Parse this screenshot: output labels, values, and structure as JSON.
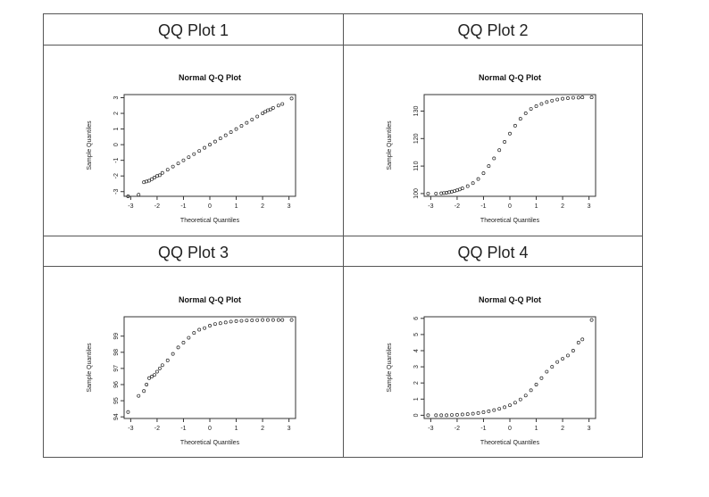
{
  "table": {
    "panels": [
      {
        "header": "QQ Plot 1"
      },
      {
        "header": "QQ Plot 2"
      },
      {
        "header": "QQ Plot 3"
      },
      {
        "header": "QQ Plot 4"
      }
    ]
  },
  "chart_data": [
    {
      "type": "scatter",
      "title": "Normal Q-Q Plot",
      "xlabel": "Theoretical Quantiles",
      "ylabel": "Sample Quantiles",
      "xlim": [
        -3.25,
        3.25
      ],
      "ylim": [
        -3.3,
        3.2
      ],
      "xticks": [
        -3,
        -2,
        -1,
        0,
        1,
        2,
        3
      ],
      "yticks": [
        -3,
        -2,
        -1,
        0,
        1,
        2,
        3
      ],
      "grid": false,
      "points": [
        [
          -3.1,
          -3.3
        ],
        [
          -2.7,
          -3.2
        ],
        [
          -2.5,
          -2.4
        ],
        [
          -2.4,
          -2.35
        ],
        [
          -2.3,
          -2.3
        ],
        [
          -2.2,
          -2.2
        ],
        [
          -2.1,
          -2.1
        ],
        [
          -2.0,
          -2.0
        ],
        [
          -1.9,
          -1.95
        ],
        [
          -1.8,
          -1.8
        ],
        [
          -1.6,
          -1.6
        ],
        [
          -1.4,
          -1.4
        ],
        [
          -1.2,
          -1.2
        ],
        [
          -1.0,
          -1.0
        ],
        [
          -0.8,
          -0.8
        ],
        [
          -0.6,
          -0.6
        ],
        [
          -0.4,
          -0.4
        ],
        [
          -0.2,
          -0.2
        ],
        [
          0.0,
          0.0
        ],
        [
          0.2,
          0.2
        ],
        [
          0.4,
          0.4
        ],
        [
          0.6,
          0.6
        ],
        [
          0.8,
          0.8
        ],
        [
          1.0,
          1.0
        ],
        [
          1.2,
          1.2
        ],
        [
          1.4,
          1.4
        ],
        [
          1.6,
          1.6
        ],
        [
          1.8,
          1.8
        ],
        [
          2.0,
          2.0
        ],
        [
          2.1,
          2.1
        ],
        [
          2.2,
          2.2
        ],
        [
          2.3,
          2.25
        ],
        [
          2.4,
          2.35
        ],
        [
          2.6,
          2.5
        ],
        [
          2.75,
          2.6
        ],
        [
          3.1,
          2.95
        ]
      ]
    },
    {
      "type": "scatter",
      "title": "Normal Q-Q Plot",
      "xlabel": "Theoretical Quantiles",
      "ylabel": "Sample Quantiles",
      "xlim": [
        -3.25,
        3.25
      ],
      "ylim": [
        99,
        136
      ],
      "xticks": [
        -3,
        -2,
        -1,
        0,
        1,
        2,
        3
      ],
      "yticks": [
        100,
        110,
        120,
        130
      ],
      "grid": false,
      "points": [
        [
          -3.1,
          100.0
        ],
        [
          -2.8,
          100.0
        ],
        [
          -2.6,
          100.1
        ],
        [
          -2.5,
          100.2
        ],
        [
          -2.4,
          100.3
        ],
        [
          -2.3,
          100.5
        ],
        [
          -2.2,
          100.7
        ],
        [
          -2.1,
          100.9
        ],
        [
          -2.0,
          101.2
        ],
        [
          -1.9,
          101.5
        ],
        [
          -1.8,
          101.9
        ],
        [
          -1.6,
          102.7
        ],
        [
          -1.4,
          103.8
        ],
        [
          -1.2,
          105.3
        ],
        [
          -1.0,
          107.4
        ],
        [
          -0.8,
          110.0
        ],
        [
          -0.6,
          112.8
        ],
        [
          -0.4,
          115.8
        ],
        [
          -0.2,
          118.8
        ],
        [
          0.0,
          121.8
        ],
        [
          0.2,
          124.7
        ],
        [
          0.4,
          127.2
        ],
        [
          0.6,
          129.2
        ],
        [
          0.8,
          130.8
        ],
        [
          1.0,
          131.8
        ],
        [
          1.2,
          132.6
        ],
        [
          1.4,
          133.3
        ],
        [
          1.6,
          133.8
        ],
        [
          1.8,
          134.2
        ],
        [
          2.0,
          134.5
        ],
        [
          2.2,
          134.7
        ],
        [
          2.4,
          134.85
        ],
        [
          2.6,
          134.9
        ],
        [
          2.75,
          135.0
        ],
        [
          3.1,
          135.0
        ]
      ]
    },
    {
      "type": "scatter",
      "title": "Normal Q-Q Plot",
      "xlabel": "Theoretical Quantiles",
      "ylabel": "Sample Quantiles",
      "xlim": [
        -3.25,
        3.25
      ],
      "ylim": [
        93.9,
        100.2
      ],
      "xticks": [
        -3,
        -2,
        -1,
        0,
        1,
        2,
        3
      ],
      "yticks": [
        94,
        95,
        96,
        97,
        98,
        99
      ],
      "grid": false,
      "points": [
        [
          -3.1,
          94.3
        ],
        [
          -2.7,
          95.3
        ],
        [
          -2.5,
          95.6
        ],
        [
          -2.4,
          96.0
        ],
        [
          -2.3,
          96.4
        ],
        [
          -2.2,
          96.5
        ],
        [
          -2.1,
          96.6
        ],
        [
          -2.0,
          96.8
        ],
        [
          -1.9,
          97.0
        ],
        [
          -1.8,
          97.2
        ],
        [
          -1.6,
          97.5
        ],
        [
          -1.4,
          97.9
        ],
        [
          -1.2,
          98.3
        ],
        [
          -1.0,
          98.6
        ],
        [
          -0.8,
          98.9
        ],
        [
          -0.6,
          99.2
        ],
        [
          -0.4,
          99.4
        ],
        [
          -0.2,
          99.5
        ],
        [
          0.0,
          99.65
        ],
        [
          0.2,
          99.75
        ],
        [
          0.4,
          99.8
        ],
        [
          0.6,
          99.85
        ],
        [
          0.8,
          99.9
        ],
        [
          1.0,
          99.93
        ],
        [
          1.2,
          99.95
        ],
        [
          1.4,
          99.97
        ],
        [
          1.6,
          99.98
        ],
        [
          1.8,
          99.99
        ],
        [
          2.0,
          100.0
        ],
        [
          2.2,
          100.0
        ],
        [
          2.4,
          100.0
        ],
        [
          2.6,
          100.0
        ],
        [
          2.75,
          100.0
        ],
        [
          3.1,
          100.0
        ]
      ]
    },
    {
      "type": "scatter",
      "title": "Normal Q-Q Plot",
      "xlabel": "Theoretical Quantiles",
      "ylabel": "Sample Quantiles",
      "xlim": [
        -3.25,
        3.25
      ],
      "ylim": [
        -0.2,
        6.1
      ],
      "xticks": [
        -3,
        -2,
        -1,
        0,
        1,
        2,
        3
      ],
      "yticks": [
        0,
        1,
        2,
        3,
        4,
        5,
        6
      ],
      "grid": false,
      "points": [
        [
          -3.1,
          0.0
        ],
        [
          -2.8,
          0.0
        ],
        [
          -2.6,
          0.0
        ],
        [
          -2.4,
          0.0
        ],
        [
          -2.2,
          0.02
        ],
        [
          -2.0,
          0.03
        ],
        [
          -1.8,
          0.05
        ],
        [
          -1.6,
          0.07
        ],
        [
          -1.4,
          0.1
        ],
        [
          -1.2,
          0.14
        ],
        [
          -1.0,
          0.19
        ],
        [
          -0.8,
          0.25
        ],
        [
          -0.6,
          0.32
        ],
        [
          -0.4,
          0.4
        ],
        [
          -0.2,
          0.5
        ],
        [
          0.0,
          0.62
        ],
        [
          0.2,
          0.78
        ],
        [
          0.4,
          0.98
        ],
        [
          0.6,
          1.22
        ],
        [
          0.8,
          1.55
        ],
        [
          1.0,
          1.9
        ],
        [
          1.2,
          2.3
        ],
        [
          1.4,
          2.7
        ],
        [
          1.6,
          3.0
        ],
        [
          1.8,
          3.3
        ],
        [
          2.0,
          3.5
        ],
        [
          2.2,
          3.7
        ],
        [
          2.4,
          4.0
        ],
        [
          2.6,
          4.5
        ],
        [
          2.75,
          4.7
        ],
        [
          3.1,
          5.9
        ]
      ]
    }
  ]
}
